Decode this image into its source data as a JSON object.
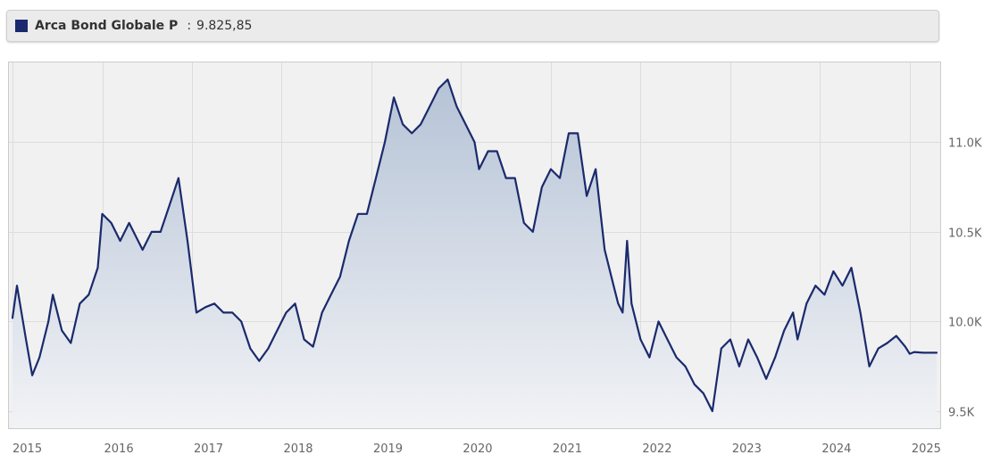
{
  "legend": {
    "series_name": "Arca Bond Globale P",
    "separator": ":",
    "last_value": "9.825,85",
    "color": "#1a2a6c"
  },
  "chart_data": {
    "type": "area",
    "title": "",
    "xlabel": "",
    "ylabel": "",
    "x_tick_labels": [
      "2015",
      "2016",
      "2017",
      "2018",
      "2019",
      "2020",
      "2021",
      "2022",
      "2023",
      "2024",
      "2025"
    ],
    "y_tick_labels": [
      "9.5K",
      "10.0K",
      "10.5K",
      "11.0K"
    ],
    "y_ticks": [
      9500,
      10000,
      10500,
      11000
    ],
    "xlim": [
      2014.95,
      2025.35
    ],
    "ylim": [
      9400,
      11450
    ],
    "grid": true,
    "line_color": "#1a2a6c",
    "fill_color_top": "#b5c3d6",
    "fill_color_bottom": "#f2f3f6",
    "plot_background": "#f1f1f1",
    "series": [
      {
        "x": [
          2015.0,
          2015.05,
          2015.15,
          2015.22,
          2015.3,
          2015.4,
          2015.45,
          2015.55,
          2015.65,
          2015.75,
          2015.85,
          2015.95,
          2016.0,
          2016.1,
          2016.2,
          2016.3,
          2016.45,
          2016.55,
          2016.65,
          2016.75,
          2016.85,
          2016.95,
          2017.05,
          2017.15,
          2017.25,
          2017.35,
          2017.45,
          2017.55,
          2017.65,
          2017.75,
          2017.85,
          2017.95,
          2018.05,
          2018.15,
          2018.25,
          2018.35,
          2018.45,
          2018.55,
          2018.65,
          2018.75,
          2018.85,
          2018.95,
          2019.05,
          2019.15,
          2019.25,
          2019.35,
          2019.45,
          2019.55,
          2019.65,
          2019.75,
          2019.85,
          2019.95,
          2020.0,
          2020.1,
          2020.15,
          2020.2,
          2020.3,
          2020.4,
          2020.5,
          2020.6,
          2020.7,
          2020.8,
          2020.9,
          2021.0,
          2021.1,
          2021.2,
          2021.3,
          2021.4,
          2021.5,
          2021.6,
          2021.7,
          2021.75,
          2021.8,
          2021.85,
          2021.9,
          2022.0,
          2022.1,
          2022.2,
          2022.3,
          2022.4,
          2022.5,
          2022.6,
          2022.7,
          2022.8,
          2022.9,
          2023.0,
          2023.1,
          2023.2,
          2023.3,
          2023.4,
          2023.5,
          2023.6,
          2023.65,
          2023.7,
          2023.75,
          2023.85,
          2023.95,
          2024.05,
          2024.15,
          2024.25,
          2024.35,
          2024.45,
          2024.55,
          2024.65,
          2024.75,
          2024.85,
          2024.95,
          2025.0,
          2025.05,
          2025.1,
          2025.15,
          2025.2,
          2025.3
        ],
        "y": [
          10020,
          10200,
          9900,
          9700,
          9800,
          10000,
          10150,
          9950,
          9880,
          10100,
          10150,
          10300,
          10600,
          10550,
          10450,
          10550,
          10400,
          10500,
          10500,
          10650,
          10800,
          10450,
          10050,
          10080,
          10100,
          10050,
          10050,
          10000,
          9850,
          9780,
          9850,
          9950,
          10050,
          10100,
          9900,
          9860,
          10050,
          10150,
          10250,
          10450,
          10600,
          10600,
          10800,
          11000,
          11250,
          11100,
          11050,
          11100,
          11200,
          11300,
          11350,
          11200,
          11150,
          11050,
          11000,
          10850,
          10950,
          10950,
          10800,
          10800,
          10550,
          10500,
          10750,
          10850,
          10800,
          11050,
          11050,
          10700,
          10850,
          10400,
          10200,
          10100,
          10050,
          10450,
          10100,
          9900,
          9800,
          10000,
          9900,
          9800,
          9750,
          9650,
          9600,
          9500,
          9850,
          9900,
          9750,
          9900,
          9800,
          9680,
          9800,
          9950,
          10000,
          10050,
          9900,
          10100,
          10200,
          10150,
          10280,
          10200,
          10300,
          10050,
          9750,
          9850,
          9880,
          9920,
          9860,
          9820,
          9830,
          9828,
          9826,
          9826,
          9826
        ]
      }
    ]
  }
}
